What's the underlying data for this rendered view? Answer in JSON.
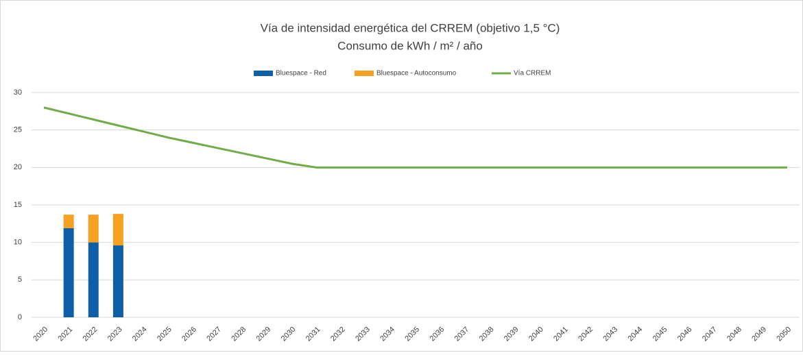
{
  "chart_data": {
    "type": "stacked_bar_line",
    "title": [
      "Vía de intensidad energética del CRREM (objetivo 1,5 °C)",
      "Consumo de kWh / m² / año"
    ],
    "categories": [
      "2020",
      "2021",
      "2022",
      "2023",
      "2024",
      "2025",
      "2026",
      "2027",
      "2028",
      "2029",
      "2030",
      "2031",
      "2032",
      "2033",
      "2034",
      "2035",
      "2036",
      "2037",
      "2038",
      "2039",
      "2040",
      "2041",
      "2042",
      "2043",
      "2044",
      "2045",
      "2046",
      "2047",
      "2048",
      "2049",
      "2050"
    ],
    "series": [
      {
        "name": "Bluespace - Red",
        "color": "#0e5ea8",
        "kind": "bar",
        "values": [
          null,
          11.9,
          10.0,
          9.6,
          null,
          null,
          null,
          null,
          null,
          null,
          null,
          null,
          null,
          null,
          null,
          null,
          null,
          null,
          null,
          null,
          null,
          null,
          null,
          null,
          null,
          null,
          null,
          null,
          null,
          null,
          null
        ]
      },
      {
        "name": "Bluespace - Autoconsumo",
        "color": "#f7a021",
        "kind": "bar",
        "values": [
          null,
          1.8,
          3.7,
          4.2,
          null,
          null,
          null,
          null,
          null,
          null,
          null,
          null,
          null,
          null,
          null,
          null,
          null,
          null,
          null,
          null,
          null,
          null,
          null,
          null,
          null,
          null,
          null,
          null,
          null,
          null,
          null
        ]
      },
      {
        "name": "Vía CRREM",
        "color": "#70ad47",
        "kind": "line",
        "values": [
          28.0,
          27.2,
          26.4,
          25.6,
          24.8,
          24.0,
          23.3,
          22.6,
          21.9,
          21.2,
          20.5,
          20.0,
          20.0,
          20.0,
          20.0,
          20.0,
          20.0,
          20.0,
          20.0,
          20.0,
          20.0,
          20.0,
          20.0,
          20.0,
          20.0,
          20.0,
          20.0,
          20.0,
          20.0,
          20.0,
          20.0
        ]
      }
    ],
    "ylim": [
      0,
      30
    ],
    "yticks": [
      0,
      5,
      10,
      15,
      20,
      25,
      30
    ],
    "grid": true,
    "legend": "top"
  }
}
